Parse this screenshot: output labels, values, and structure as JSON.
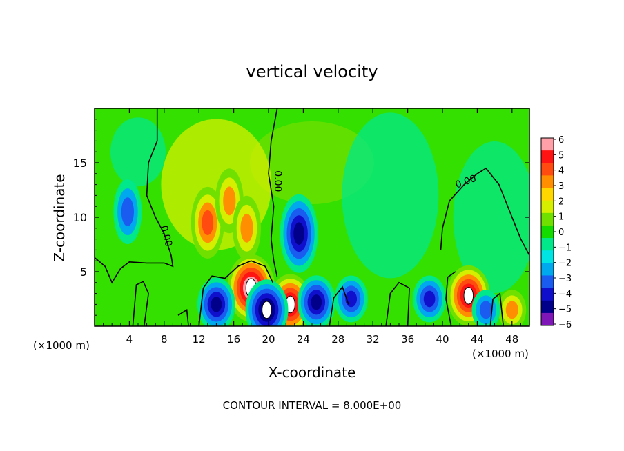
{
  "chart_data": {
    "type": "heatmap",
    "title": "vertical velocity",
    "xlabel": "X-coordinate",
    "ylabel": "Z-coordinate",
    "x_unit_label": "(×1000 m)",
    "x_ticks": [
      4,
      8,
      12,
      16,
      20,
      24,
      28,
      32,
      36,
      40,
      44,
      48
    ],
    "y_ticks": [
      5,
      10,
      15
    ],
    "xlim": [
      0,
      50
    ],
    "ylim": [
      0,
      20
    ],
    "contour_level": 0.0,
    "contour_label": "0.00",
    "footer": "CONTOUR INTERVAL = 8.000E+00",
    "colorbar": {
      "range": [
        -6,
        6
      ],
      "tick_labels": [
        "6",
        "5",
        "4",
        "3",
        "2",
        "1",
        "0",
        "−1",
        "−2",
        "−3",
        "−4",
        "−5",
        "−6"
      ],
      "colors": [
        "#ff9fa8",
        "#ff1414",
        "#ff4a10",
        "#ff8f00",
        "#ffd700",
        "#d6ef00",
        "#70e000",
        "#14dc00",
        "#00e88a",
        "#00e4e4",
        "#00a8ee",
        "#1a5cf0",
        "#1010cc",
        "#00008a",
        "#7e16b8"
      ]
    },
    "features": [
      {
        "x": 13.0,
        "z": 9.5,
        "value": 4.2
      },
      {
        "x": 15.5,
        "z": 11.5,
        "value": 3.0
      },
      {
        "x": 17.5,
        "z": 9.0,
        "value": 2.8
      },
      {
        "x": 18.0,
        "z": 3.5,
        "value": 6.5
      },
      {
        "x": 22.5,
        "z": 2.0,
        "value": 6.0
      },
      {
        "x": 43.0,
        "z": 2.8,
        "value": 5.5
      },
      {
        "x": 48.0,
        "z": 1.5,
        "value": 3.0
      },
      {
        "x": 3.8,
        "z": 10.5,
        "value": -3.2
      },
      {
        "x": 23.5,
        "z": 8.5,
        "value": -4.5
      },
      {
        "x": 25.5,
        "z": 2.2,
        "value": -5.0
      },
      {
        "x": 14.0,
        "z": 2.0,
        "value": -5.0
      },
      {
        "x": 19.8,
        "z": 1.5,
        "value": -5.5
      },
      {
        "x": 29.5,
        "z": 2.5,
        "value": -4.0
      },
      {
        "x": 38.5,
        "z": 2.5,
        "value": -4.0
      },
      {
        "x": 45.0,
        "z": 1.5,
        "value": -2.5
      }
    ]
  }
}
